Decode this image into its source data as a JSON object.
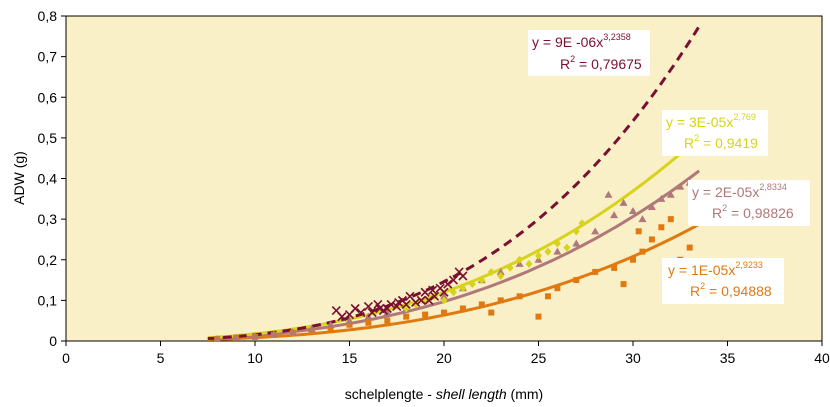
{
  "chart_data": {
    "type": "scatter",
    "xlabel": {
      "main": "schelplengte - ",
      "italic": "shell length",
      "unit": " (mm)"
    },
    "ylabel": "ADW (g)",
    "xlim": [
      0,
      40
    ],
    "ylim": [
      0,
      0.8
    ],
    "x_ticks": [
      "0",
      "5",
      "10",
      "15",
      "20",
      "25",
      "30",
      "35",
      "40"
    ],
    "y_ticks": [
      "0",
      "0,1",
      "0,2",
      "0,3",
      "0,4",
      "0,5",
      "0,6",
      "0,7",
      "0,8"
    ],
    "background": "#f9f0c8",
    "series": [
      {
        "key": "dark_red",
        "color": "#7a1030",
        "marker": "x",
        "line_style": "dashed",
        "fit": {
          "a": 9e-06,
          "b": 3.2358,
          "x_range": [
            7.5,
            33.5
          ]
        },
        "equation": {
          "lhs": "y = 9E -06x",
          "exp": "3,2358",
          "r2_label": "R",
          "r2_exp": "2",
          "r2_value": " = 0,79675"
        },
        "points": [
          [
            14.3,
            0.075
          ],
          [
            14.6,
            0.06
          ],
          [
            15.0,
            0.065
          ],
          [
            15.3,
            0.08
          ],
          [
            15.6,
            0.07
          ],
          [
            16.0,
            0.085
          ],
          [
            16.2,
            0.07
          ],
          [
            16.5,
            0.09
          ],
          [
            16.8,
            0.075
          ],
          [
            17.0,
            0.08
          ],
          [
            17.2,
            0.09
          ],
          [
            17.5,
            0.085
          ],
          [
            17.8,
            0.1
          ],
          [
            18.0,
            0.09
          ],
          [
            18.2,
            0.11
          ],
          [
            18.5,
            0.095
          ],
          [
            18.8,
            0.1
          ],
          [
            19.0,
            0.12
          ],
          [
            19.2,
            0.1
          ],
          [
            19.5,
            0.11
          ],
          [
            19.8,
            0.13
          ],
          [
            20.0,
            0.12
          ],
          [
            20.2,
            0.14
          ],
          [
            20.5,
            0.15
          ],
          [
            20.8,
            0.17
          ],
          [
            21.0,
            0.16
          ],
          [
            16.6,
            0.08
          ],
          [
            17.6,
            0.095
          ],
          [
            19.4,
            0.125
          ]
        ]
      },
      {
        "key": "yellow",
        "color": "#d6d31a",
        "marker": "diamond",
        "line_style": "solid",
        "fit": {
          "a": 3e-05,
          "b": 2.769,
          "x_range": [
            7.5,
            33.5
          ]
        },
        "equation": {
          "lhs": "y = 3E-05x",
          "exp": "2,769",
          "r2_label": "R",
          "r2_exp": "2",
          "r2_value": " = 0,9419"
        },
        "points": [
          [
            18.0,
            0.08
          ],
          [
            18.5,
            0.09
          ],
          [
            19.0,
            0.1
          ],
          [
            19.5,
            0.11
          ],
          [
            20.0,
            0.1
          ],
          [
            20.5,
            0.12
          ],
          [
            21.0,
            0.13
          ],
          [
            21.5,
            0.14
          ],
          [
            22.0,
            0.15
          ],
          [
            22.5,
            0.17
          ],
          [
            23.0,
            0.16
          ],
          [
            23.5,
            0.18
          ],
          [
            24.0,
            0.2
          ],
          [
            24.5,
            0.19
          ],
          [
            25.0,
            0.21
          ],
          [
            25.5,
            0.22
          ],
          [
            26.0,
            0.24
          ],
          [
            26.5,
            0.23
          ],
          [
            27.0,
            0.27
          ],
          [
            27.3,
            0.29
          ]
        ]
      },
      {
        "key": "mauve",
        "color": "#b07878",
        "marker": "triangle",
        "line_style": "solid",
        "fit": {
          "a": 2e-05,
          "b": 2.8334,
          "x_range": [
            7.5,
            33.5
          ]
        },
        "equation": {
          "lhs": "y = 2E-05x",
          "exp": "2,8334",
          "r2_label": "R",
          "r2_exp": "2",
          "r2_value": " = 0,98826"
        },
        "points": [
          [
            8.0,
            0.005
          ],
          [
            9.0,
            0.008
          ],
          [
            10.0,
            0.012
          ],
          [
            11.0,
            0.018
          ],
          [
            12.0,
            0.022
          ],
          [
            13.0,
            0.03
          ],
          [
            14.0,
            0.04
          ],
          [
            15.0,
            0.05
          ],
          [
            16.0,
            0.06
          ],
          [
            17.0,
            0.07
          ],
          [
            18.0,
            0.08
          ],
          [
            19.0,
            0.1
          ],
          [
            20.0,
            0.11
          ],
          [
            21.0,
            0.13
          ],
          [
            22.0,
            0.15
          ],
          [
            23.0,
            0.17
          ],
          [
            24.0,
            0.19
          ],
          [
            25.0,
            0.2
          ],
          [
            26.0,
            0.22
          ],
          [
            27.0,
            0.24
          ],
          [
            28.0,
            0.27
          ],
          [
            28.7,
            0.36
          ],
          [
            29.0,
            0.31
          ],
          [
            29.5,
            0.34
          ],
          [
            30.0,
            0.32
          ],
          [
            30.5,
            0.3
          ],
          [
            31.0,
            0.33
          ],
          [
            31.5,
            0.35
          ],
          [
            32.0,
            0.36
          ],
          [
            32.5,
            0.38
          ],
          [
            33.0,
            0.39
          ]
        ]
      },
      {
        "key": "orange",
        "color": "#e07a10",
        "marker": "square",
        "line_style": "solid",
        "fit": {
          "a": 1e-05,
          "b": 2.9233,
          "x_range": [
            7.5,
            33.5
          ]
        },
        "equation": {
          "lhs": "y = 1E-05x",
          "exp": "2,9233",
          "r2_label": "R",
          "r2_exp": "2",
          "r2_value": " = 0,94888"
        },
        "points": [
          [
            8.0,
            0.005
          ],
          [
            9.0,
            0.008
          ],
          [
            10.0,
            0.01
          ],
          [
            11.0,
            0.015
          ],
          [
            12.0,
            0.02
          ],
          [
            13.0,
            0.025
          ],
          [
            14.0,
            0.03
          ],
          [
            15.0,
            0.04
          ],
          [
            16.0,
            0.045
          ],
          [
            17.0,
            0.05
          ],
          [
            18.0,
            0.06
          ],
          [
            19.0,
            0.065
          ],
          [
            20.0,
            0.07
          ],
          [
            21.0,
            0.08
          ],
          [
            22.0,
            0.09
          ],
          [
            22.5,
            0.07
          ],
          [
            23.0,
            0.1
          ],
          [
            24.0,
            0.11
          ],
          [
            25.0,
            0.06
          ],
          [
            25.5,
            0.11
          ],
          [
            26.0,
            0.13
          ],
          [
            27.0,
            0.15
          ],
          [
            28.0,
            0.17
          ],
          [
            29.0,
            0.18
          ],
          [
            29.5,
            0.14
          ],
          [
            30.0,
            0.2
          ],
          [
            30.5,
            0.22
          ],
          [
            31.0,
            0.25
          ],
          [
            31.5,
            0.28
          ],
          [
            32.0,
            0.3
          ],
          [
            33.0,
            0.23
          ],
          [
            33.5,
            0.33
          ],
          [
            30.3,
            0.27
          ],
          [
            32.5,
            0.2
          ]
        ]
      }
    ]
  }
}
